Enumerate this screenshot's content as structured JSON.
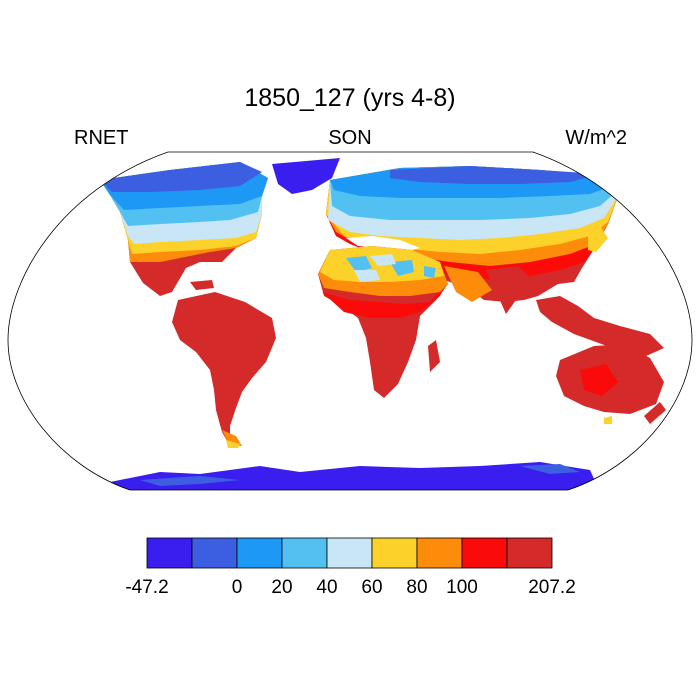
{
  "title": "1850_127 (yrs 4-8)",
  "left_label": "RNET",
  "center_label": "SON",
  "right_label": "W/m^2",
  "colorbar": {
    "colors": [
      "#3a1ef0",
      "#3c5ee0",
      "#1e98f5",
      "#52c1f2",
      "#c8e6f5",
      "#fcd22a",
      "#fd8c0a",
      "#fb0a0a",
      "#d42a2a"
    ],
    "labels": [
      "-47.2",
      "0",
      "20",
      "40",
      "60",
      "80",
      "100",
      "207.2"
    ],
    "label_boundaries": [
      0,
      2,
      3,
      4,
      5,
      6,
      7,
      9
    ]
  },
  "map": {
    "projection": "Robinson",
    "field": "net radiation (RNET)",
    "season": "SON"
  }
}
